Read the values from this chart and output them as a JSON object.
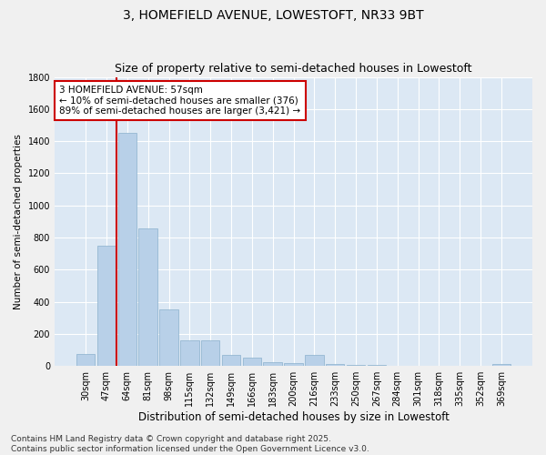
{
  "title": "3, HOMEFIELD AVENUE, LOWESTOFT, NR33 9BT",
  "subtitle": "Size of property relative to semi-detached houses in Lowestoft",
  "xlabel": "Distribution of semi-detached houses by size in Lowestoft",
  "ylabel": "Number of semi-detached properties",
  "categories": [
    "30sqm",
    "47sqm",
    "64sqm",
    "81sqm",
    "98sqm",
    "115sqm",
    "132sqm",
    "149sqm",
    "166sqm",
    "183sqm",
    "200sqm",
    "216sqm",
    "233sqm",
    "250sqm",
    "267sqm",
    "284sqm",
    "301sqm",
    "318sqm",
    "335sqm",
    "352sqm",
    "369sqm"
  ],
  "values": [
    75,
    750,
    1450,
    855,
    350,
    160,
    160,
    70,
    55,
    25,
    20,
    70,
    15,
    8,
    5,
    4,
    3,
    3,
    3,
    3,
    15
  ],
  "bar_color": "#b8d0e8",
  "bar_edge_color": "#8ab0cc",
  "vline_color": "#cc0000",
  "vline_x": 1.5,
  "annotation_title": "3 HOMEFIELD AVENUE: 57sqm",
  "annotation_line1": "← 10% of semi-detached houses are smaller (376)",
  "annotation_line2": "89% of semi-detached houses are larger (3,421) →",
  "annotation_box_facecolor": "#ffffff",
  "annotation_box_edgecolor": "#cc0000",
  "ylim": [
    0,
    1800
  ],
  "yticks": [
    0,
    200,
    400,
    600,
    800,
    1000,
    1200,
    1400,
    1600,
    1800
  ],
  "plot_bg": "#dce8f4",
  "fig_bg": "#f0f0f0",
  "grid_color": "#ffffff",
  "footer_line1": "Contains HM Land Registry data © Crown copyright and database right 2025.",
  "footer_line2": "Contains public sector information licensed under the Open Government Licence v3.0.",
  "title_fontsize": 10,
  "subtitle_fontsize": 9,
  "xlabel_fontsize": 8.5,
  "ylabel_fontsize": 7.5,
  "tick_fontsize": 7,
  "annot_fontsize": 7.5,
  "footer_fontsize": 6.5
}
